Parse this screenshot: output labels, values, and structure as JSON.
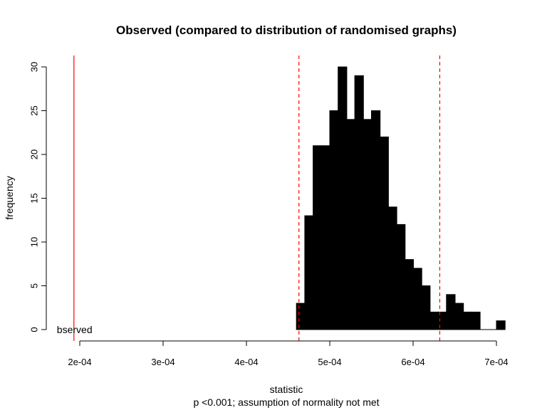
{
  "chart_data": {
    "type": "histogram",
    "title": "Observed (compared to distribution of randomised graphs)",
    "xlabel": "statistic",
    "subtitle": "p <0.001; assumption of normality not met",
    "ylabel": "frequency",
    "xlim": [
      0.00019,
      0.00071
    ],
    "ylim": [
      0,
      30
    ],
    "x_ticks": [
      0.0002,
      0.0003,
      0.0004,
      0.0005,
      0.0006,
      0.0007
    ],
    "x_tick_labels": [
      "2e-04",
      "3e-04",
      "4e-04",
      "5e-04",
      "6e-04",
      "7e-04"
    ],
    "y_ticks": [
      0,
      5,
      10,
      15,
      20,
      25,
      30
    ],
    "y_tick_labels": [
      "0",
      "5",
      "10",
      "15",
      "20",
      "25",
      "30"
    ],
    "bins": [
      {
        "x0": 0.00046,
        "x1": 0.00047,
        "count": 3
      },
      {
        "x0": 0.00047,
        "x1": 0.00048,
        "count": 13
      },
      {
        "x0": 0.00048,
        "x1": 0.00049,
        "count": 21
      },
      {
        "x0": 0.00049,
        "x1": 0.0005,
        "count": 21
      },
      {
        "x0": 0.0005,
        "x1": 0.00051,
        "count": 25
      },
      {
        "x0": 0.00051,
        "x1": 0.00052,
        "count": 30
      },
      {
        "x0": 0.00052,
        "x1": 0.00053,
        "count": 24
      },
      {
        "x0": 0.00053,
        "x1": 0.00054,
        "count": 29
      },
      {
        "x0": 0.00054,
        "x1": 0.00055,
        "count": 24
      },
      {
        "x0": 0.00055,
        "x1": 0.00056,
        "count": 25
      },
      {
        "x0": 0.00056,
        "x1": 0.00057,
        "count": 22
      },
      {
        "x0": 0.00057,
        "x1": 0.00058,
        "count": 14
      },
      {
        "x0": 0.00058,
        "x1": 0.00059,
        "count": 12
      },
      {
        "x0": 0.00059,
        "x1": 0.0006,
        "count": 8
      },
      {
        "x0": 0.0006,
        "x1": 0.00061,
        "count": 7
      },
      {
        "x0": 0.00061,
        "x1": 0.00062,
        "count": 5
      },
      {
        "x0": 0.00062,
        "x1": 0.00063,
        "count": 2
      },
      {
        "x0": 0.00063,
        "x1": 0.00064,
        "count": 2
      },
      {
        "x0": 0.00064,
        "x1": 0.00065,
        "count": 4
      },
      {
        "x0": 0.00065,
        "x1": 0.00066,
        "count": 3
      },
      {
        "x0": 0.00066,
        "x1": 0.00067,
        "count": 2
      },
      {
        "x0": 0.00067,
        "x1": 0.00068,
        "count": 2
      },
      {
        "x0": 0.00068,
        "x1": 0.00069,
        "count": 0
      },
      {
        "x0": 0.00069,
        "x1": 0.0007,
        "count": 0
      },
      {
        "x0": 0.0007,
        "x1": 0.00071,
        "count": 1
      }
    ],
    "observed_value": 0.000193,
    "observed_label": "bserved",
    "observed_line_color": "#ff0000",
    "interval_lines": [
      0.000463,
      0.000632
    ],
    "interval_line_color": "#ff0000",
    "bar_color": "#000000"
  }
}
